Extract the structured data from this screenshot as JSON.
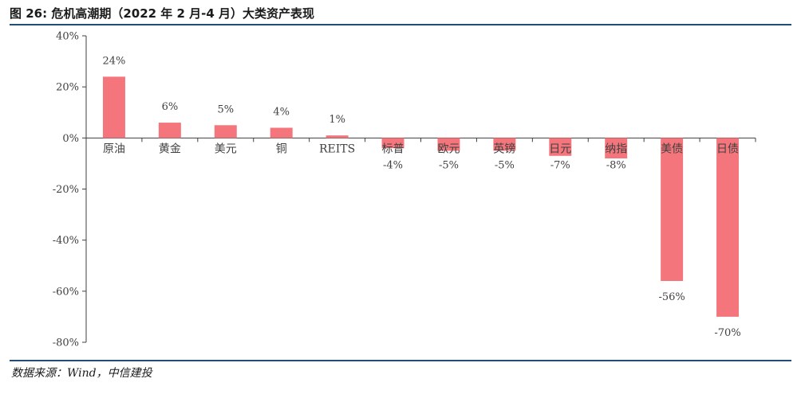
{
  "header": {
    "title": "图 26: 危机高潮期（2022 年 2 月-4 月）大类资产表现"
  },
  "footer": {
    "source": "数据来源：Wind，中信建投"
  },
  "colors": {
    "bar": "#f4767c",
    "axis": "#3f3f3f",
    "title_rule": "#1f4e79"
  },
  "chart_data": {
    "type": "bar",
    "categories": [
      "原油",
      "黄金",
      "美元",
      "铜",
      "REITS",
      "标普",
      "欧元",
      "英镑",
      "日元",
      "纳指",
      "美债",
      "日债"
    ],
    "values": [
      24,
      6,
      5,
      4,
      1,
      -4,
      -5,
      -5,
      -7,
      -8,
      -56,
      -70
    ],
    "data_labels": [
      "24%",
      "6%",
      "5%",
      "4%",
      "1%",
      "-4%",
      "-5%",
      "-5%",
      "-7%",
      "-8%",
      "-56%",
      "-70%"
    ],
    "ylim": [
      -80,
      40
    ],
    "yticks": [
      40,
      20,
      0,
      -20,
      -40,
      -60,
      -80
    ],
    "ytick_labels": [
      "40%",
      "20%",
      "0%",
      "-20%",
      "-40%",
      "-60%",
      "-80%"
    ],
    "xlabel": "",
    "ylabel": "",
    "grid": false,
    "legend": "none"
  }
}
